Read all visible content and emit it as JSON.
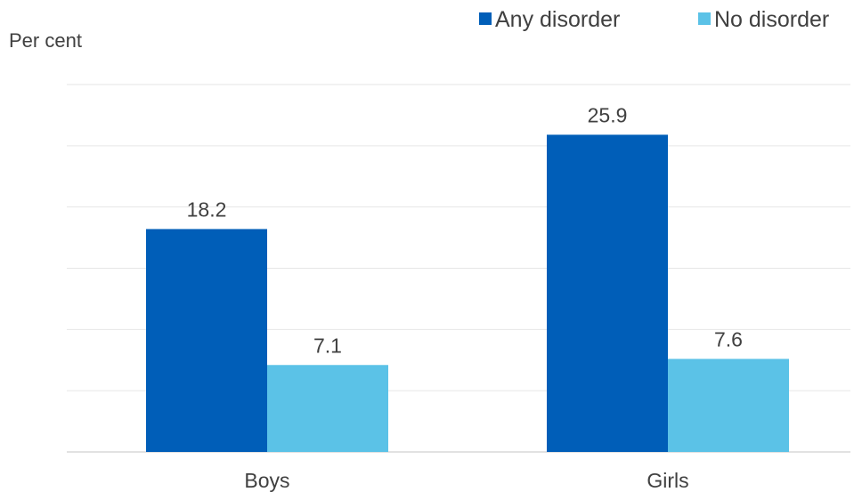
{
  "chart_data": {
    "type": "bar",
    "ylabel": "Per cent",
    "categories": [
      "Boys",
      "Girls"
    ],
    "series": [
      {
        "name": "Any disorder",
        "values": [
          18.2,
          25.9
        ],
        "color": "#005EB8"
      },
      {
        "name": "No disorder",
        "values": [
          7.1,
          7.6
        ],
        "color": "#5BC2E7"
      }
    ],
    "ylim": [
      0,
      30
    ],
    "grid": true,
    "legend": "top-right"
  }
}
